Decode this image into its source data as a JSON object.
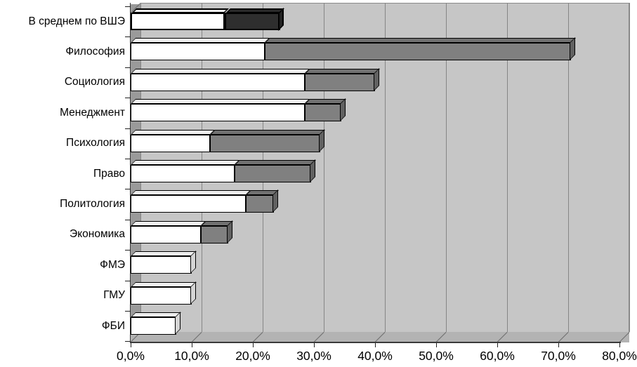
{
  "chart_data": {
    "type": "bar",
    "orientation": "horizontal",
    "stacked": true,
    "effect_3d": true,
    "title": "",
    "legend": "none",
    "grid": "vertical",
    "categories": [
      "В среднем по ВШЭ",
      "Философия",
      "Социология",
      "Менеджмент",
      "Психология",
      "Право",
      "Политология",
      "Экономика",
      "ФМЭ",
      "ГМУ",
      "ФБИ"
    ],
    "series": [
      {
        "name": "series_1_white",
        "color": "#ffffff",
        "values": [
          15.4,
          21.9,
          28.5,
          28.5,
          13.0,
          17.0,
          18.9,
          11.5,
          10.0,
          10.0,
          7.5
        ]
      },
      {
        "name": "series_2_gray",
        "color": "#808080",
        "values": [
          9.1,
          50.1,
          11.5,
          6.0,
          18.0,
          12.5,
          4.6,
          4.5,
          0,
          0,
          0
        ]
      }
    ],
    "x_tick_labels": [
      "0,0%",
      "10,0%",
      "20,0%",
      "30,0%",
      "40,0%",
      "50,0%",
      "60,0%",
      "70,0%",
      "80,0%"
    ],
    "xlim": [
      0,
      80
    ],
    "x_tick_step": 10,
    "highlight": {
      "category_index": 0,
      "series_2_color": "#2e2e2e",
      "border": "thick-black"
    }
  },
  "colors": {
    "figure_background": "#ffffff",
    "plot_background": "#c6c6c6",
    "left_wall": "#9a9a9a",
    "floor": "#b3b3b3",
    "gridline": "#868686",
    "bar_border": "#000000",
    "text": "#000000"
  }
}
